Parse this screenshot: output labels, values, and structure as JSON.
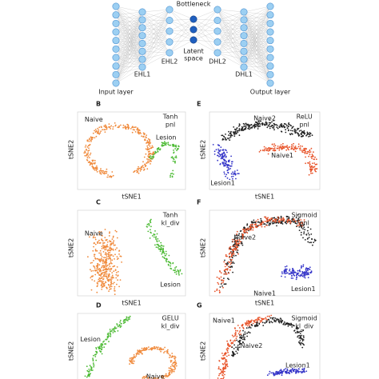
{
  "diagram": {
    "bottleneck": "Bottleneck",
    "latent": [
      "Latent",
      "space"
    ],
    "layers": [
      "EHL1",
      "EHL2",
      "DHL2",
      "DHL1"
    ],
    "input": "Input layer",
    "output": "Output layer"
  },
  "panels": [
    {
      "letter": "B",
      "x_label": "tSNE1",
      "y_label": "tSNE2",
      "method": [
        "Tanh",
        "pnl"
      ],
      "clusters": [
        {
          "label": "Naive",
          "color": "#f08a3c"
        },
        {
          "label": "Lesion",
          "color": "#4cba34"
        }
      ]
    },
    {
      "letter": "E",
      "x_label": "tSNE1",
      "y_label": "tSNE2",
      "method": [
        "ReLU",
        "pnl"
      ],
      "clusters": [
        {
          "label": "Naive2",
          "color": "#222222"
        },
        {
          "label": "Naive1",
          "color": "#e8542a"
        },
        {
          "label": "Lesion1",
          "color": "#3434c8"
        }
      ]
    },
    {
      "letter": "C",
      "x_label": "tSNE1",
      "y_label": "tSNE2",
      "method": [
        "Tanh",
        "kl_div"
      ],
      "clusters": [
        {
          "label": "Naive",
          "color": "#f08a3c"
        },
        {
          "label": "Lesion",
          "color": "#4cba34"
        }
      ]
    },
    {
      "letter": "F",
      "x_label": "tSNE1",
      "y_label": "tSNE2",
      "method": [
        "Sigmoid",
        "pnl"
      ],
      "clusters": [
        {
          "label": "Naive2",
          "color": "#222222"
        },
        {
          "label": "Naive1",
          "color": "#e8542a"
        },
        {
          "label": "Lesion1",
          "color": "#3434c8"
        }
      ]
    },
    {
      "letter": "D",
      "y_label": "tSNE2",
      "method": [
        "GELU",
        "kl_div"
      ],
      "clusters": [
        {
          "label": "Lesion",
          "color": "#4cba34"
        },
        {
          "label": "Naive",
          "color": "#f08a3c"
        }
      ]
    },
    {
      "letter": "G",
      "y_label": "tSNE2",
      "method": [
        "Sigmoid",
        "kl_div"
      ],
      "clusters": [
        {
          "label": "Naive1",
          "color": "#e8542a"
        },
        {
          "label": "Naive2",
          "color": "#222222"
        },
        {
          "label": "Lesion1",
          "color": "#3434c8"
        }
      ]
    }
  ]
}
